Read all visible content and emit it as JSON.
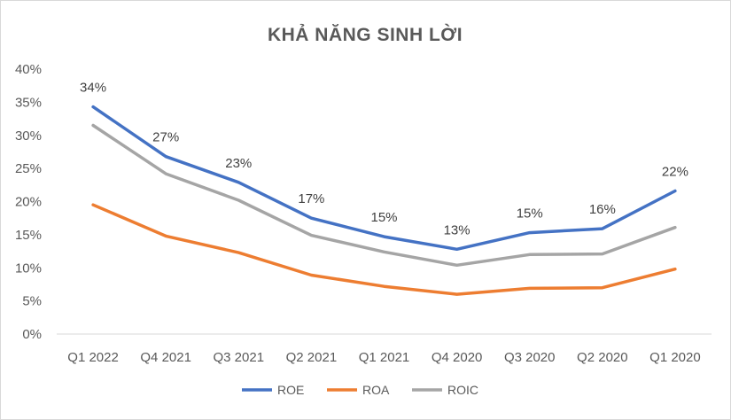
{
  "chart_data": {
    "type": "line",
    "title": "KHẢ NĂNG SINH LỜI",
    "categories": [
      "Q1 2022",
      "Q4 2021",
      "Q3 2021",
      "Q2 2021",
      "Q1 2021",
      "Q4 2020",
      "Q3 2020",
      "Q2 2020",
      "Q1 2020"
    ],
    "series": [
      {
        "name": "ROE",
        "color": "#4472C4",
        "values": [
          34.3,
          26.8,
          22.9,
          17.5,
          14.7,
          12.8,
          15.3,
          15.9,
          21.6
        ],
        "data_labels": [
          "34%",
          "27%",
          "23%",
          "17%",
          "15%",
          "13%",
          "15%",
          "16%",
          "22%"
        ]
      },
      {
        "name": "ROA",
        "color": "#ED7D31",
        "values": [
          19.5,
          14.8,
          12.3,
          8.9,
          7.2,
          6.0,
          6.9,
          7.0,
          9.8
        ]
      },
      {
        "name": "ROIC",
        "color": "#A5A5A5",
        "values": [
          31.5,
          24.2,
          20.2,
          14.9,
          12.4,
          10.4,
          12.0,
          12.1,
          16.1
        ]
      }
    ],
    "y_ticks": [
      "0%",
      "5%",
      "10%",
      "15%",
      "20%",
      "25%",
      "30%",
      "35%",
      "40%"
    ],
    "ylim": [
      0,
      40
    ],
    "grid": false,
    "legend": "bottom-center"
  }
}
